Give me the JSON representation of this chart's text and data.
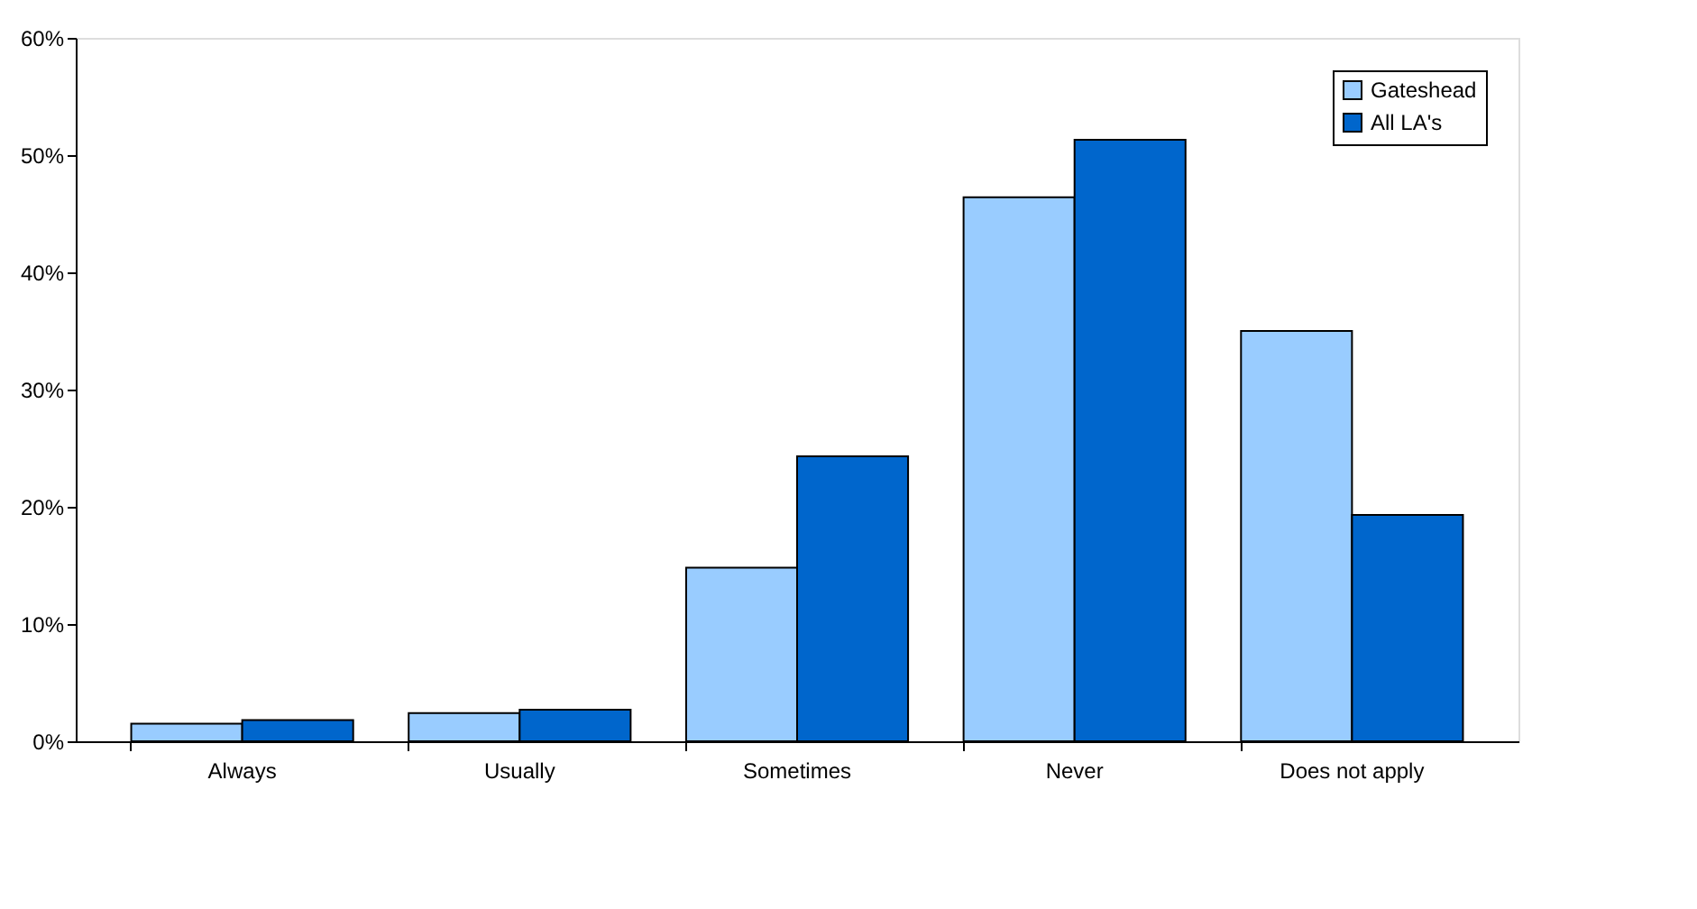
{
  "chart_data": {
    "type": "bar",
    "categories": [
      "Always",
      "Usually",
      "Sometimes",
      "Never",
      "Does not apply"
    ],
    "series": [
      {
        "name": "Gateshead",
        "color": "#99ccff",
        "values": [
          1.5,
          2.4,
          14.8,
          46.4,
          35.0
        ]
      },
      {
        "name": "All LA's",
        "color": "#0066cc",
        "values": [
          1.8,
          2.7,
          24.3,
          51.3,
          19.3
        ]
      }
    ],
    "ylim": [
      0,
      60
    ],
    "yticks": [
      {
        "value": 0,
        "label": "0%"
      },
      {
        "value": 10,
        "label": "10%"
      },
      {
        "value": 20,
        "label": "20%"
      },
      {
        "value": 30,
        "label": "30%"
      },
      {
        "value": 40,
        "label": "40%"
      },
      {
        "value": 50,
        "label": "50%"
      },
      {
        "value": 60,
        "label": "60%"
      }
    ],
    "grid": false,
    "legend": "top right"
  }
}
